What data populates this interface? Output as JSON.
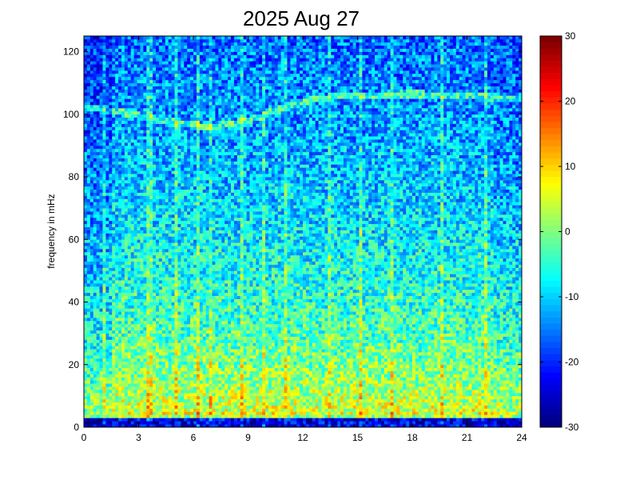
{
  "chart_data": {
    "type": "heatmap",
    "title": "2025 Aug 27",
    "xlabel": "",
    "ylabel": "frequency in mHz",
    "xlim": [
      0,
      24
    ],
    "ylim": [
      0,
      125
    ],
    "x_ticks": [
      "0",
      "3",
      "6",
      "9",
      "12",
      "15",
      "18",
      "21",
      "24"
    ],
    "y_ticks": [
      "0",
      "20",
      "40",
      "60",
      "80",
      "100",
      "120"
    ],
    "colorbar": {
      "colormap": "jet",
      "range": [
        -30,
        30
      ],
      "ticks": [
        "30",
        "20",
        "10",
        "0",
        "-10",
        "-20",
        "-30"
      ]
    },
    "description_values": {
      "time_bins": 140,
      "freq_bins": 125,
      "band_trace_mHz": [
        {
          "x": 0,
          "y": 102
        },
        {
          "x": 2,
          "y": 101
        },
        {
          "x": 4,
          "y": 98
        },
        {
          "x": 7,
          "y": 96
        },
        {
          "x": 9,
          "y": 98
        },
        {
          "x": 10.5,
          "y": 101
        },
        {
          "x": 12,
          "y": 104
        },
        {
          "x": 14,
          "y": 106
        },
        {
          "x": 18,
          "y": 106.5
        },
        {
          "x": 21,
          "y": 106
        },
        {
          "x": 24,
          "y": 105
        }
      ]
    }
  }
}
